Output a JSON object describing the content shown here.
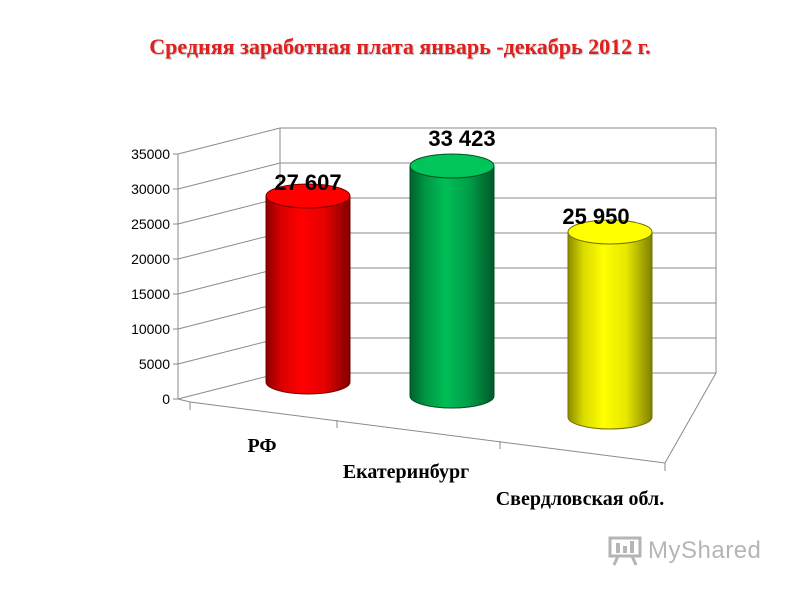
{
  "chart_data": {
    "type": "bar",
    "title": "Средняя заработная плата январь -декабрь 2012 г.",
    "categories": [
      "РФ",
      "Екатеринбург",
      "Свердловская обл."
    ],
    "values": [
      27607,
      33423,
      25950
    ],
    "data_labels": [
      "27 607",
      "33 423",
      "25 950"
    ],
    "y_ticks": [
      "0",
      "5000",
      "10000",
      "15000",
      "20000",
      "25000",
      "30000",
      "35000"
    ],
    "ylim": [
      0,
      35000
    ],
    "grid": true,
    "legend": "none",
    "bar_shape": "cylinder",
    "colors": [
      "#ff0000",
      "#00b050",
      "#ffff00"
    ],
    "title_color": "#e0201e"
  },
  "watermark": {
    "text": "MyShared",
    "icon": "presentation-board-icon"
  }
}
